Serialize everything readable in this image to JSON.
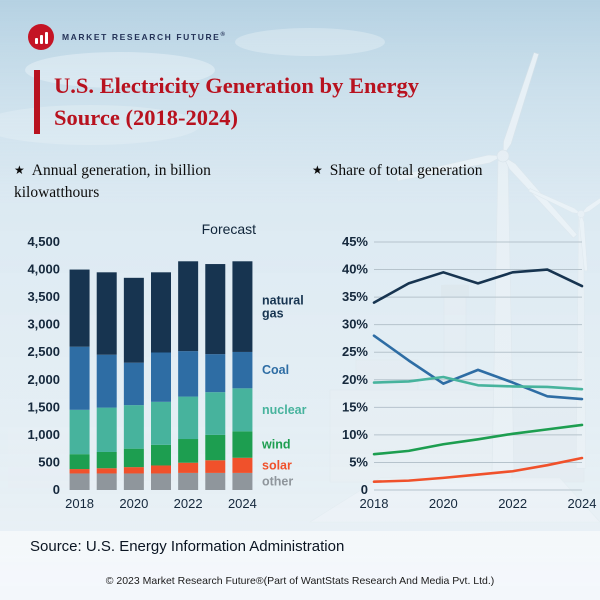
{
  "brand": {
    "name": "MARKET RESEARCH FUTURE",
    "reg": "®"
  },
  "icons": {
    "star": "★"
  },
  "title": "U.S. Electricity Generation by Energy Source (2018-2024)",
  "subtitles": {
    "left": "Annual generation, in billion kilowatthours",
    "right": "Share of total generation"
  },
  "footer": {
    "source": "Source: U.S. Energy Information Administration",
    "copyright": "© 2023 Market Research Future®(Part of WantStats Research And Media Pvt. Ltd.)"
  },
  "colors": {
    "title_red": "#b8121f",
    "logo_red": "#c41425",
    "text_navy": "#15283c",
    "natural_gas": "#173450",
    "coal": "#2e6da4",
    "nuclear": "#47b39d",
    "wind": "#1d9e50",
    "solar": "#f0512b",
    "other": "#8f969c"
  },
  "chart_data": [
    {
      "type": "bar",
      "stacked": true,
      "title": "Annual generation, in billion kilowatthours",
      "annotation": "Forecast",
      "categories": [
        "2018",
        "2019",
        "2020",
        "2021",
        "2022",
        "2023",
        "2024"
      ],
      "series": [
        {
          "name": "other",
          "color": "#8f969c",
          "values": [
            300,
            300,
            300,
            300,
            310,
            310,
            310
          ]
        },
        {
          "name": "solar",
          "color": "#f0512b",
          "values": [
            80,
            95,
            115,
            145,
            185,
            230,
            275
          ]
        },
        {
          "name": "wind",
          "color": "#1d9e50",
          "values": [
            270,
            295,
            335,
            375,
            430,
            460,
            480
          ]
        },
        {
          "name": "nuclear",
          "color": "#47b39d",
          "values": [
            805,
            805,
            790,
            780,
            770,
            775,
            780
          ]
        },
        {
          "name": "Coal",
          "color": "#2e6da4",
          "values": [
            1145,
            960,
            770,
            895,
            825,
            690,
            660
          ]
        },
        {
          "name": "natural gas",
          "color": "#173450",
          "values": [
            1400,
            1495,
            1540,
            1455,
            1630,
            1635,
            1645
          ]
        }
      ],
      "ylim": [
        0,
        4500
      ],
      "yticks": [
        "0",
        "500",
        "1,000",
        "1,500",
        "2,000",
        "2,500",
        "3,000",
        "3,500",
        "4,000",
        "4,500"
      ],
      "xticks": [
        "2018",
        "2020",
        "2022",
        "2024"
      ]
    },
    {
      "type": "line",
      "title": "Share of total generation",
      "x": [
        "2018",
        "2019",
        "2020",
        "2021",
        "2022",
        "2023",
        "2024"
      ],
      "series": [
        {
          "name": "natural gas",
          "color": "#173450",
          "values": [
            34,
            37.5,
            39.5,
            37.5,
            39.5,
            40,
            37
          ]
        },
        {
          "name": "Coal",
          "color": "#2e6da4",
          "values": [
            28,
            23.5,
            19.3,
            21.8,
            19.5,
            17,
            16.5
          ]
        },
        {
          "name": "nuclear",
          "color": "#47b39d",
          "values": [
            19.5,
            19.7,
            20.5,
            19,
            18.8,
            18.7,
            18.3
          ]
        },
        {
          "name": "wind",
          "color": "#1d9e50",
          "values": [
            6.5,
            7.1,
            8.3,
            9.2,
            10.2,
            11,
            11.8
          ]
        },
        {
          "name": "solar",
          "color": "#f0512b",
          "values": [
            1.5,
            1.7,
            2.2,
            2.8,
            3.4,
            4.5,
            5.8
          ]
        }
      ],
      "ylim": [
        0,
        45
      ],
      "yticks": [
        "0",
        "5%",
        "10%",
        "15%",
        "20%",
        "25%",
        "30%",
        "35%",
        "40%",
        "45%"
      ],
      "xticks": [
        "2018",
        "2020",
        "2022",
        "2024"
      ],
      "grid": true,
      "legend_position": "none"
    }
  ]
}
